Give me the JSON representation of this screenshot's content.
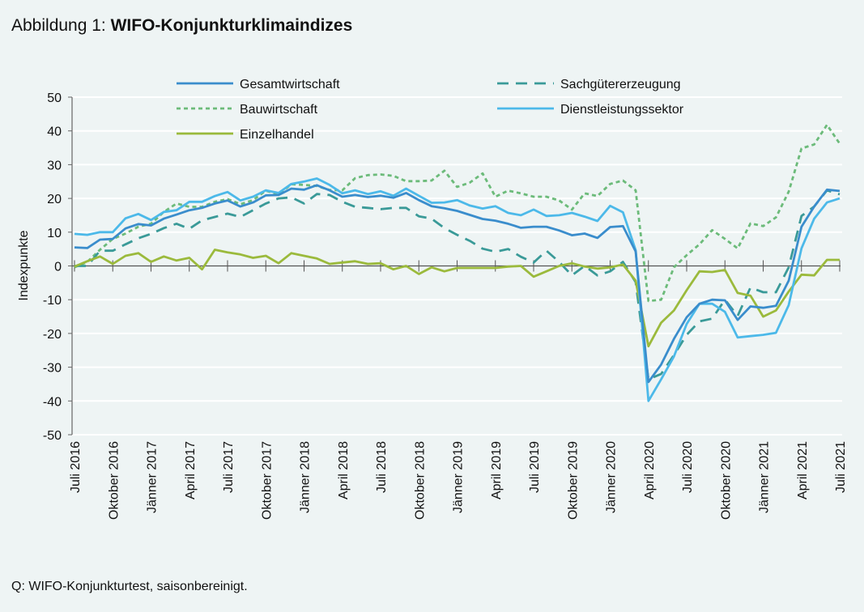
{
  "title_prefix": "Abbildung 1:",
  "title_main": "WIFO-Konjunkturklimaindizes",
  "source": "Q: WIFO-Konjunkturtest, saisonbereinigt.",
  "chart_data": {
    "type": "line",
    "title": "WIFO-Konjunkturklimaindizes",
    "xlabel": "",
    "ylabel": "Indexpunkte",
    "ylim": [
      -50,
      50
    ],
    "yticks": [
      50,
      40,
      30,
      20,
      10,
      0,
      -10,
      -20,
      -30,
      -40,
      -50
    ],
    "grid": true,
    "legend_placement": "top",
    "x_start": "Juli 2016",
    "x_end": "Juli 2021",
    "n_months": 61,
    "xtick_labels": [
      "Juli 2016",
      "Oktober 2016",
      "Jänner 2017",
      "April 2017",
      "Juli 2017",
      "Oktober 2017",
      "Jänner 2018",
      "April 2018",
      "Juli 2018",
      "Oktober 2018",
      "Jänner 2019",
      "April 2019",
      "Juli 2019",
      "Oktober 2019",
      "Jänner 2020",
      "April 2020",
      "Juli 2020",
      "Oktober 2020",
      "Jänner 2021",
      "April 2021",
      "Juli 2021"
    ],
    "series": [
      {
        "name": "Gesamtwirtschaft",
        "color": "#3a8dcc",
        "dash": "solid",
        "values": [
          5.5,
          5.3,
          7.8,
          8,
          11.1,
          12.4,
          12,
          14,
          15.2,
          16.5,
          17.2,
          18.5,
          19.4,
          17.6,
          18.8,
          20.9,
          21,
          22.9,
          22.6,
          23.9,
          22.4,
          20.5,
          21,
          20.4,
          20.8,
          20.2,
          21.6,
          19.5,
          17.7,
          17.1,
          16.3,
          15.1,
          13.9,
          13.4,
          12.5,
          11.3,
          11.6,
          11.6,
          10.5,
          9.1,
          9.6,
          8.3,
          11.5,
          11.8,
          4.3,
          -34.4,
          -29.2,
          -21.6,
          -15.2,
          -11.2,
          -10,
          -10.2,
          -16,
          -12,
          -12.4,
          -11.8,
          -4.4,
          11.6,
          17.6,
          22.6,
          22.2
        ]
      },
      {
        "name": "Sachgütererzeugung",
        "color": "#3a9a98",
        "dash": "long",
        "values": [
          0,
          0,
          4.5,
          4.5,
          6.4,
          8.2,
          9.5,
          11.2,
          12.5,
          11,
          13.5,
          14.5,
          15.5,
          14.5,
          16.5,
          18.5,
          20,
          20.3,
          18.5,
          21.3,
          21,
          19,
          17.5,
          17.2,
          16.8,
          17.2,
          17.2,
          14.7,
          14,
          11.2,
          9.2,
          7.4,
          5.1,
          4.2,
          5,
          2.7,
          1,
          4.5,
          1.2,
          -2.8,
          0,
          -2.8,
          -1.6,
          1.2,
          -4.8,
          -33.6,
          -32,
          -26.4,
          -20.4,
          -16.4,
          -15.6,
          -10,
          -14.8,
          -6.4,
          -7.8,
          -7.8,
          -0.4,
          14.8,
          17.6,
          22.4,
          21.2
        ]
      },
      {
        "name": "Bauwirtschaft",
        "color": "#6cbb7a",
        "dash": "short",
        "values": [
          -0.4,
          1.2,
          4.8,
          8,
          9.6,
          11.6,
          12.5,
          16,
          18.5,
          17.5,
          17.5,
          19,
          19.8,
          18.3,
          19.5,
          22.3,
          21.2,
          24.2,
          24,
          23.7,
          22.5,
          22.4,
          26,
          26.9,
          27.1,
          26.7,
          25.1,
          25.1,
          25.3,
          28.2,
          23.4,
          24.7,
          27.4,
          20.5,
          22.3,
          21.5,
          20.5,
          20.5,
          19.4,
          16.7,
          21.5,
          20.7,
          24.3,
          25.3,
          22.4,
          -10.4,
          -10,
          -0.4,
          3.2,
          6.4,
          10.6,
          8,
          5.2,
          12.6,
          11.8,
          14.4,
          22,
          34.8,
          36,
          41.8,
          36.2
        ]
      },
      {
        "name": "Dienstleistungssektor",
        "color": "#4cb9e9",
        "dash": "solid",
        "values": [
          9.5,
          9.2,
          10,
          10,
          14.1,
          15.4,
          13.6,
          16,
          16.5,
          19,
          19,
          20.7,
          21.9,
          19.4,
          20.5,
          22.4,
          21.6,
          24.3,
          25,
          25.9,
          24,
          21.5,
          22.4,
          21.3,
          22.1,
          20.8,
          22.9,
          20.8,
          18.7,
          18.8,
          19.5,
          17.9,
          17,
          17.7,
          15.7,
          15,
          16.7,
          14.8,
          15,
          15.7,
          14.6,
          13.3,
          17.8,
          15.9,
          4.7,
          -40,
          -33.6,
          -26.8,
          -17.2,
          -11.2,
          -11.2,
          -13.6,
          -21.2,
          -20.8,
          -20.4,
          -19.8,
          -11.6,
          5.2,
          14,
          18.8,
          20
        ]
      },
      {
        "name": "Einzelhandel",
        "color": "#9bba3c",
        "dash": "solid",
        "values": [
          -0.2,
          1.4,
          2.8,
          0.6,
          3,
          3.8,
          1.2,
          2.8,
          1.6,
          2.4,
          -1,
          4.8,
          4,
          3.4,
          2.4,
          3,
          0.8,
          3.8,
          3,
          2.2,
          0.6,
          1,
          1.4,
          0.6,
          0.8,
          -1,
          0,
          -2.4,
          -0.4,
          -1.6,
          -0.6,
          -0.6,
          -0.6,
          -0.6,
          -0.2,
          0,
          -3.2,
          -1.6,
          0,
          0.8,
          -0.2,
          -0.8,
          -0.4,
          0.4,
          -4.4,
          -23.8,
          -16.8,
          -13.2,
          -7.2,
          -1.6,
          -1.8,
          -1.2,
          -8,
          -8.8,
          -15,
          -13.2,
          -7.6,
          -2.6,
          -2.8,
          1.8,
          1.8
        ]
      }
    ]
  }
}
